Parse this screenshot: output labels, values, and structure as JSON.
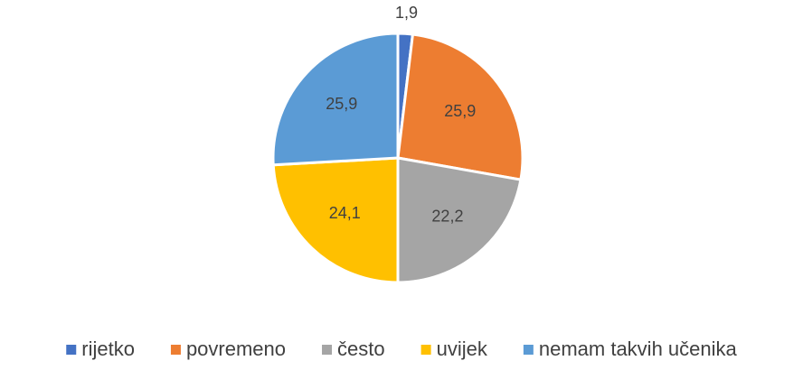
{
  "chart_data": {
    "type": "pie",
    "categories": [
      "rijetko",
      "povremeno",
      "često",
      "uvijek",
      "nemam takvih učenika"
    ],
    "values": [
      1.9,
      25.9,
      22.2,
      24.1,
      25.9
    ],
    "value_labels": [
      "1,9",
      "25,9",
      "22,2",
      "24,1",
      "25,9"
    ],
    "colors": [
      "#4472c4",
      "#ed7d31",
      "#a5a5a5",
      "#ffc000",
      "#5b9bd5"
    ],
    "legend": "bottom"
  }
}
